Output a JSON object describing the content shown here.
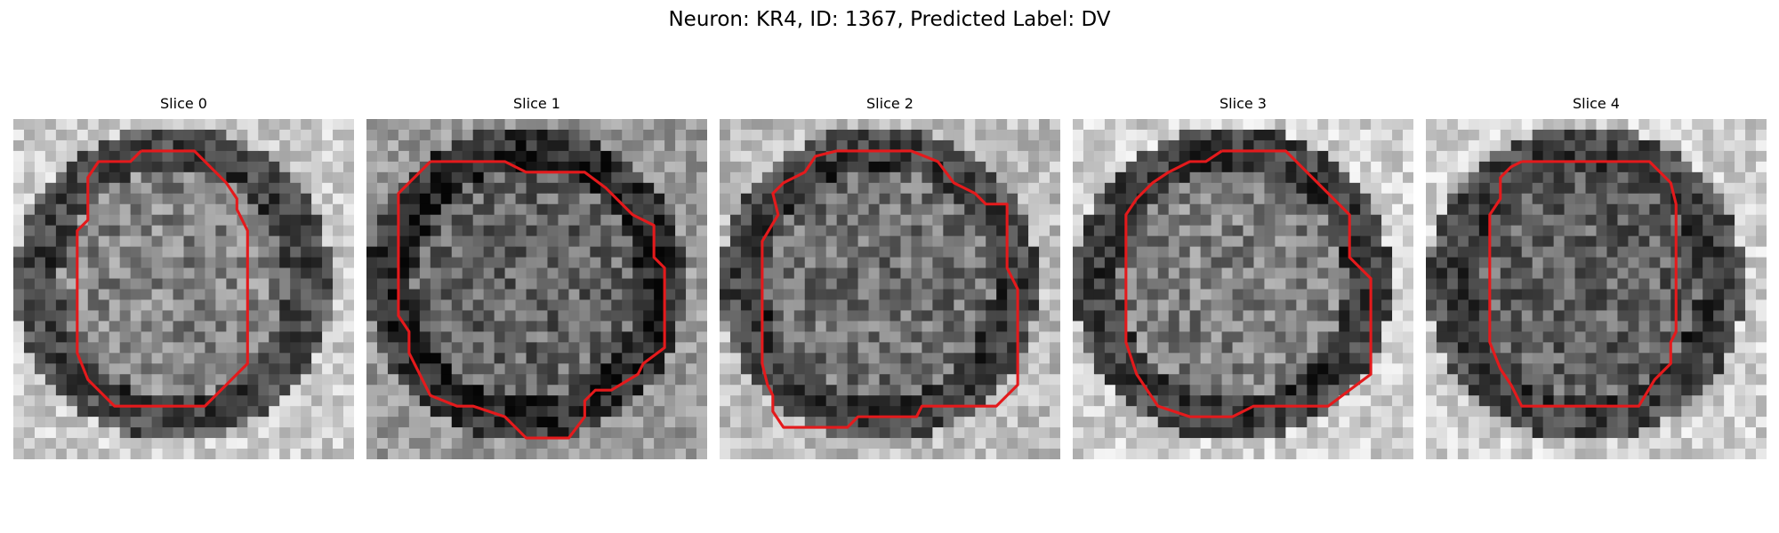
{
  "figure": {
    "title": "Neuron: KR4, ID: 1367, Predicted Label: DV"
  },
  "panels": [
    {
      "title": "Slice 0"
    },
    {
      "title": "Slice 1"
    },
    {
      "title": "Slice 2"
    },
    {
      "title": "Slice 3"
    },
    {
      "title": "Slice 4"
    }
  ],
  "style": {
    "contour_color": "#e41a1c",
    "colormap": "grayscale"
  }
}
